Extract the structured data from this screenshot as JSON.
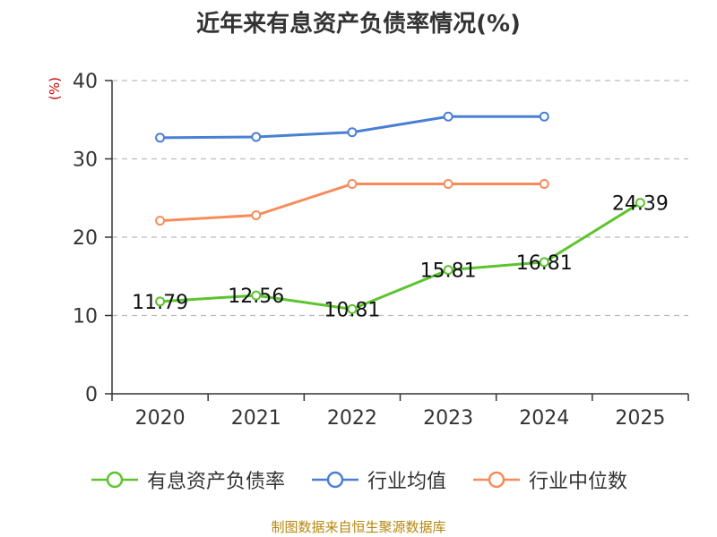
{
  "chart_data": {
    "type": "line",
    "title": "近年来有息资产负债率情况(%)",
    "unit_label": "(%)",
    "categories": [
      "2020",
      "2021",
      "2022",
      "2023",
      "2024",
      "2025"
    ],
    "ylim": [
      0,
      40
    ],
    "yticks": [
      "0",
      "10",
      "20",
      "30",
      "40"
    ],
    "grid": true,
    "legend_position": "bottom",
    "series": [
      {
        "name": "有息资产负债率",
        "color": "#5cc42f",
        "values": [
          11.79,
          12.56,
          10.81,
          15.81,
          16.81,
          24.39
        ],
        "labels": [
          "11.79",
          "12.56",
          "10.81",
          "15.81",
          "16.81",
          "24.39"
        ]
      },
      {
        "name": "行业均值",
        "color": "#4a7fd6",
        "values": [
          32.7,
          32.8,
          33.4,
          35.4,
          35.4,
          null
        ]
      },
      {
        "name": "行业中位数",
        "color": "#f78c5a",
        "values": [
          22.1,
          22.8,
          26.8,
          26.8,
          26.8,
          null
        ]
      }
    ]
  },
  "source": "制图数据来自恒生聚源数据库"
}
